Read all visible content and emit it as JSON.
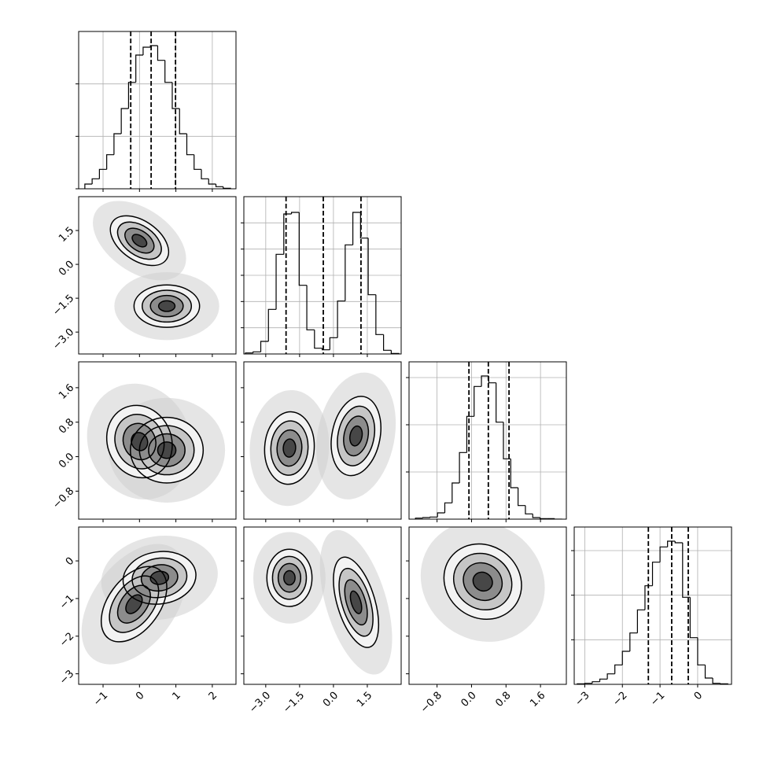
{
  "chart_data": {
    "type": "corner",
    "params": [
      {
        "lim": [
          -1.67,
          2.65
        ],
        "ticks": [
          {
            "value": -1,
            "label": "−1"
          },
          0,
          1,
          2
        ],
        "hist": {
          "bins": [
            -1.5,
            -1.3,
            -1.1,
            -0.9,
            -0.7,
            -0.5,
            -0.3,
            -0.1,
            0.1,
            0.3,
            0.5,
            0.7,
            0.9,
            1.1,
            1.3,
            1.5,
            1.7,
            1.9,
            2.1,
            2.3,
            2.5
          ],
          "counts": [
            0.09,
            0.19,
            0.37,
            0.65,
            1.05,
            1.53,
            2.03,
            2.55,
            2.7,
            2.73,
            2.45,
            2.03,
            1.53,
            1.05,
            0.65,
            0.37,
            0.19,
            0.09,
            0.04,
            0.01
          ],
          "quantiles": [
            -0.24,
            0.32,
            0.99
          ],
          "ylim": [
            0,
            3
          ],
          "yticks": [
            0,
            1,
            2
          ]
        }
      },
      {
        "lim": [
          -3.97,
          3.0
        ],
        "ticks": [
          {
            "value": -3,
            "label": "−3.0"
          },
          {
            "value": -1.5,
            "label": "−1.5"
          },
          {
            "value": 0,
            "label": "0.0"
          },
          1.5
        ],
        "hist": {
          "bins": [
            -3.9,
            -3.56,
            -3.22,
            -2.88,
            -2.54,
            -2.2,
            -1.86,
            -1.52,
            -1.18,
            -0.84,
            -0.5,
            -0.16,
            0.18,
            0.52,
            0.86,
            1.2,
            1.54,
            1.88,
            2.22,
            2.56,
            2.9
          ],
          "counts": [
            0.02,
            0.04,
            0.24,
            0.85,
            1.9,
            2.67,
            2.7,
            1.31,
            0.46,
            0.11,
            0.08,
            0.31,
            1.01,
            2.08,
            2.7,
            2.21,
            1.13,
            0.37,
            0.07,
            0.01
          ],
          "quantiles": [
            -2.1,
            -0.45,
            1.22
          ],
          "ylim": [
            0,
            3
          ],
          "yticks": [
            0.5,
            1,
            1.5,
            2,
            2.5
          ]
        }
      },
      {
        "lim": [
          -1.45,
          2.2
        ],
        "ticks": [
          {
            "value": -0.8,
            "label": "−0.8"
          },
          {
            "value": 0,
            "label": "0.0"
          },
          0.8,
          1.6
        ],
        "hist": {
          "bins": [
            -1.3,
            -1.13,
            -0.96,
            -0.79,
            -0.62,
            -0.45,
            -0.28,
            -0.11,
            0.06,
            0.23,
            0.4,
            0.57,
            0.74,
            0.91,
            1.08,
            1.25,
            1.42,
            1.59,
            1.76,
            1.93,
            2.1
          ],
          "counts": [
            0.02,
            0.03,
            0.04,
            0.12,
            0.31,
            0.69,
            1.27,
            1.96,
            2.53,
            2.73,
            2.6,
            1.85,
            1.15,
            0.6,
            0.26,
            0.1,
            0.03,
            0.01,
            0.01,
            0
          ],
          "quantiles": [
            -0.06,
            0.39,
            0.87
          ],
          "ylim": [
            0,
            3
          ],
          "yticks": [
            0.9,
            1.8,
            2.7
          ]
        }
      },
      {
        "lim": [
          -3.28,
          0.9
        ],
        "ticks": [
          {
            "value": -3,
            "label": "−3"
          },
          {
            "value": -2,
            "label": "−2"
          },
          {
            "value": -1,
            "label": "−1"
          },
          0
        ],
        "hist": {
          "bins": [
            -3.2,
            -3,
            -2.8,
            -2.6,
            -2.4,
            -2.2,
            -2,
            -1.8,
            -1.6,
            -1.4,
            -1.2,
            -1,
            -0.8,
            -0.6,
            -0.4,
            -0.2,
            0,
            0.2,
            0.4,
            0.6,
            0.8
          ],
          "counts": [
            0.01,
            0.02,
            0.05,
            0.1,
            0.2,
            0.37,
            0.63,
            0.98,
            1.42,
            1.88,
            2.33,
            2.62,
            2.73,
            2.7,
            1.66,
            0.89,
            0.37,
            0.12,
            0.02,
            0.01
          ],
          "quantiles": [
            -1.31,
            -0.69,
            -0.25
          ],
          "ylim": [
            0,
            3
          ],
          "yticks": [
            0.85,
            1.7,
            2.55
          ]
        }
      }
    ],
    "pairs": [
      [
        [
          {
            "x": 0.0,
            "y": 1.05,
            "sx": 0.4,
            "sy": 0.55,
            "rho": -0.45
          },
          {
            "x": 0.75,
            "y": -1.85,
            "sx": 0.45,
            "sy": 0.47,
            "rho": 0.0
          }
        ]
      ],
      [
        [
          {
            "x": 0.0,
            "y": 0.35,
            "sx": 0.45,
            "sy": 0.42,
            "rho": -0.1
          },
          {
            "x": 0.75,
            "y": 0.15,
            "sx": 0.5,
            "sy": 0.38,
            "rho": 0.0
          }
        ],
        [
          {
            "x": -1.95,
            "y": 0.2,
            "sx": 0.55,
            "sy": 0.42,
            "rho": 0.05
          },
          {
            "x": 1.0,
            "y": 0.48,
            "sx": 0.55,
            "sy": 0.46,
            "rho": 0.2
          }
        ]
      ],
      [
        [
          {
            "x": 0.55,
            "y": -0.45,
            "sx": 0.5,
            "sy": 0.35,
            "rho": 0.1
          },
          {
            "x": -0.15,
            "y": -1.15,
            "sx": 0.45,
            "sy": 0.5,
            "rho": 0.45
          }
        ],
        [
          {
            "x": -1.95,
            "y": -0.45,
            "sx": 0.5,
            "sy": 0.38,
            "rho": 0.0
          },
          {
            "x": 1.0,
            "y": -1.1,
            "sx": 0.5,
            "sy": 0.6,
            "rho": -0.5
          }
        ],
        [
          {
            "x": 0.26,
            "y": -0.55,
            "sx": 0.45,
            "sy": 0.5,
            "rho": -0.1
          }
        ]
      ]
    ]
  }
}
